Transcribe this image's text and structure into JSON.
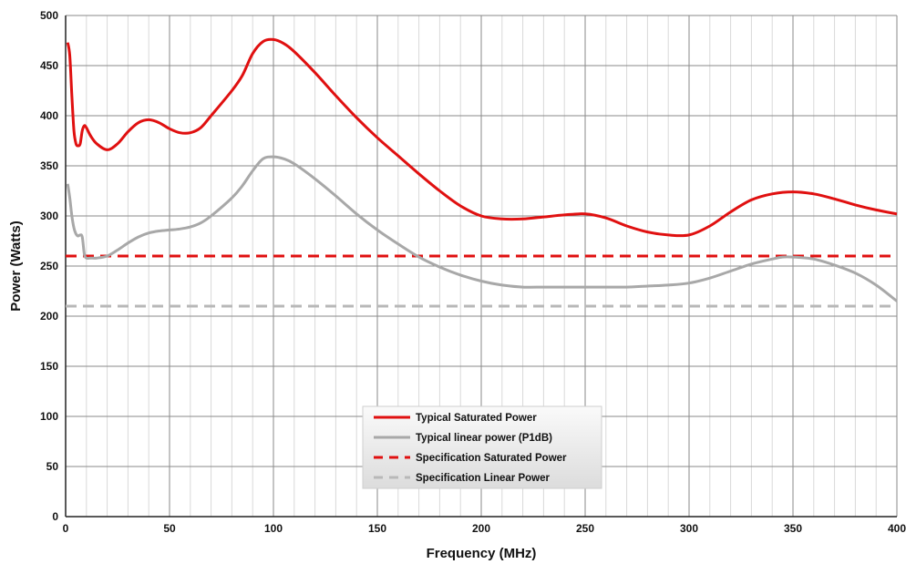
{
  "chart_data": {
    "type": "line",
    "title": "",
    "xlabel": "Frequency (MHz)",
    "ylabel": "Power (Watts)",
    "xlim": [
      0,
      400
    ],
    "ylim": [
      0,
      500
    ],
    "x_ticks": [
      0,
      50,
      100,
      150,
      200,
      250,
      300,
      350,
      400
    ],
    "y_ticks": [
      0,
      50,
      100,
      150,
      200,
      250,
      300,
      350,
      400,
      450,
      500
    ],
    "x_minor_step": 10,
    "grid": true,
    "legend_position": "bottom-center",
    "series": [
      {
        "name": "Typical  Saturated Power",
        "color": "#e01010",
        "style": "solid",
        "x": [
          1,
          2,
          3,
          4,
          5,
          6,
          7,
          8,
          9,
          10,
          12,
          15,
          20,
          25,
          30,
          35,
          40,
          45,
          50,
          55,
          60,
          65,
          70,
          80,
          85,
          90,
          95,
          100,
          105,
          110,
          120,
          130,
          140,
          150,
          160,
          170,
          180,
          190,
          200,
          210,
          220,
          230,
          240,
          250,
          260,
          270,
          280,
          290,
          300,
          310,
          320,
          330,
          340,
          350,
          360,
          370,
          380,
          390,
          400
        ],
        "values": [
          473,
          460,
          420,
          385,
          372,
          370,
          372,
          385,
          390,
          388,
          380,
          372,
          366,
          372,
          384,
          393,
          396,
          393,
          387,
          383,
          383,
          388,
          400,
          425,
          440,
          462,
          474,
          476,
          472,
          464,
          443,
          420,
          398,
          378,
          360,
          342,
          325,
          310,
          300,
          297,
          297,
          299,
          301,
          302,
          298,
          290,
          284,
          281,
          281,
          290,
          304,
          316,
          322,
          324,
          322,
          317,
          311,
          306,
          302
        ]
      },
      {
        "name": "Typical linear power (P1dB)",
        "color": "#a8a8a8",
        "style": "solid",
        "x": [
          1,
          2,
          3,
          4,
          5,
          6,
          7,
          8,
          9,
          10,
          12,
          15,
          20,
          25,
          30,
          35,
          40,
          45,
          50,
          55,
          60,
          65,
          70,
          80,
          85,
          90,
          95,
          100,
          105,
          110,
          120,
          130,
          140,
          150,
          160,
          170,
          180,
          190,
          200,
          210,
          220,
          230,
          240,
          250,
          260,
          270,
          280,
          290,
          300,
          310,
          320,
          330,
          340,
          345,
          350,
          360,
          370,
          380,
          390,
          400
        ],
        "values": [
          332,
          318,
          300,
          288,
          282,
          280,
          281,
          279,
          262,
          258,
          258,
          258,
          260,
          266,
          273,
          279,
          283,
          285,
          286,
          287,
          289,
          293,
          300,
          318,
          330,
          345,
          357,
          359,
          357,
          352,
          337,
          320,
          302,
          286,
          272,
          259,
          249,
          241,
          235,
          231,
          229,
          229,
          229,
          229,
          229,
          229,
          230,
          231,
          233,
          238,
          245,
          252,
          257,
          259,
          259,
          257,
          251,
          243,
          231,
          215
        ]
      },
      {
        "name": "Specification Saturated Power",
        "color": "#e01010",
        "style": "dashed",
        "x": [
          0,
          400
        ],
        "values": [
          260,
          260
        ]
      },
      {
        "name": "Specification Linear Power",
        "color": "#b8b8b8",
        "style": "dashed",
        "x": [
          0,
          400
        ],
        "values": [
          210,
          210
        ]
      }
    ]
  }
}
